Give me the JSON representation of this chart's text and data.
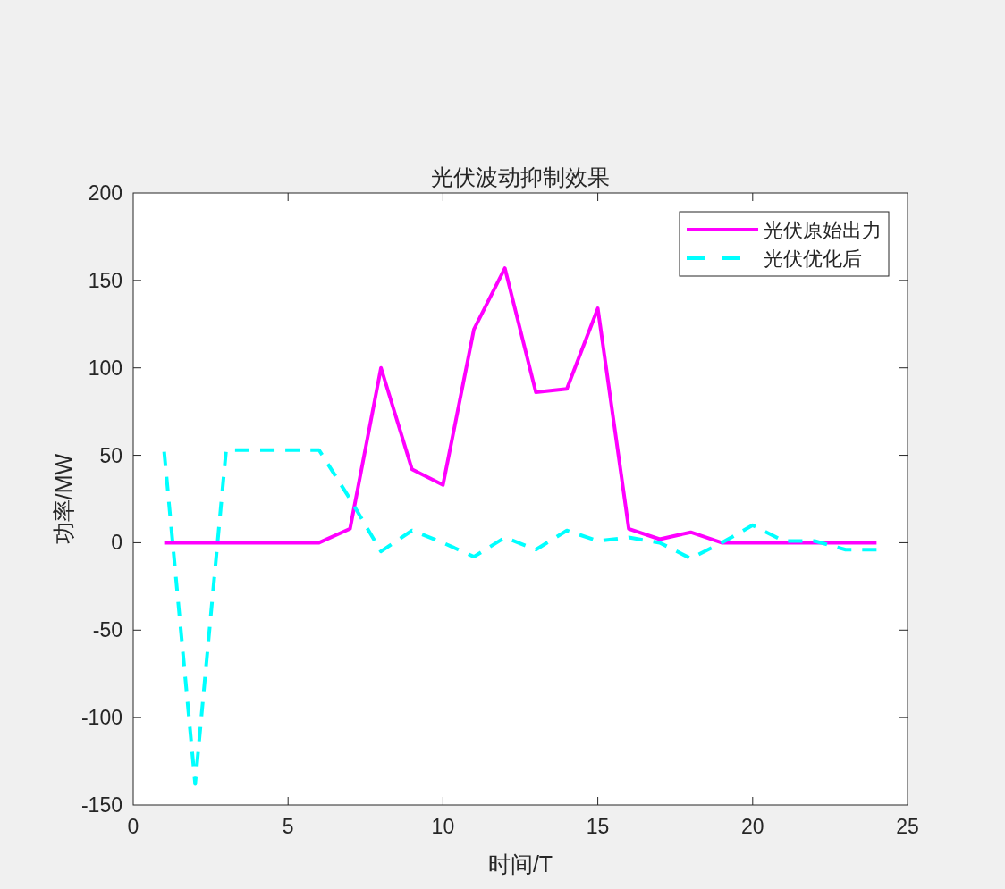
{
  "chart_data": {
    "type": "line",
    "title": "光伏波动抑制效果",
    "xlabel": "时间/T",
    "ylabel": "功率/MW",
    "x": [
      1,
      2,
      3,
      4,
      5,
      6,
      7,
      8,
      9,
      10,
      11,
      12,
      13,
      14,
      15,
      16,
      17,
      18,
      19,
      20,
      21,
      22,
      23,
      24
    ],
    "series": [
      {
        "name": "光伏原始出力",
        "color": "#ff00ff",
        "line_style": "solid",
        "values": [
          0,
          0,
          0,
          0,
          0,
          0,
          8,
          100,
          42,
          33,
          122,
          157,
          86,
          88,
          134,
          8,
          2,
          6,
          0,
          0,
          0,
          0,
          0,
          0
        ]
      },
      {
        "name": "光伏优化后",
        "color": "#00ffff",
        "line_style": "dashed",
        "values": [
          52,
          -138,
          53,
          53,
          53,
          53,
          25,
          -5,
          7,
          0,
          -8,
          3,
          -4,
          7,
          1,
          3,
          0,
          -9,
          0,
          10,
          1,
          1,
          -4,
          -4
        ]
      }
    ],
    "xlim": [
      0,
      25
    ],
    "xticks": [
      0,
      5,
      10,
      15,
      20,
      25
    ],
    "ylim": [
      -150,
      200
    ],
    "yticks": [
      -150,
      -100,
      -50,
      0,
      50,
      100,
      150,
      200
    ],
    "legend": "top right"
  }
}
